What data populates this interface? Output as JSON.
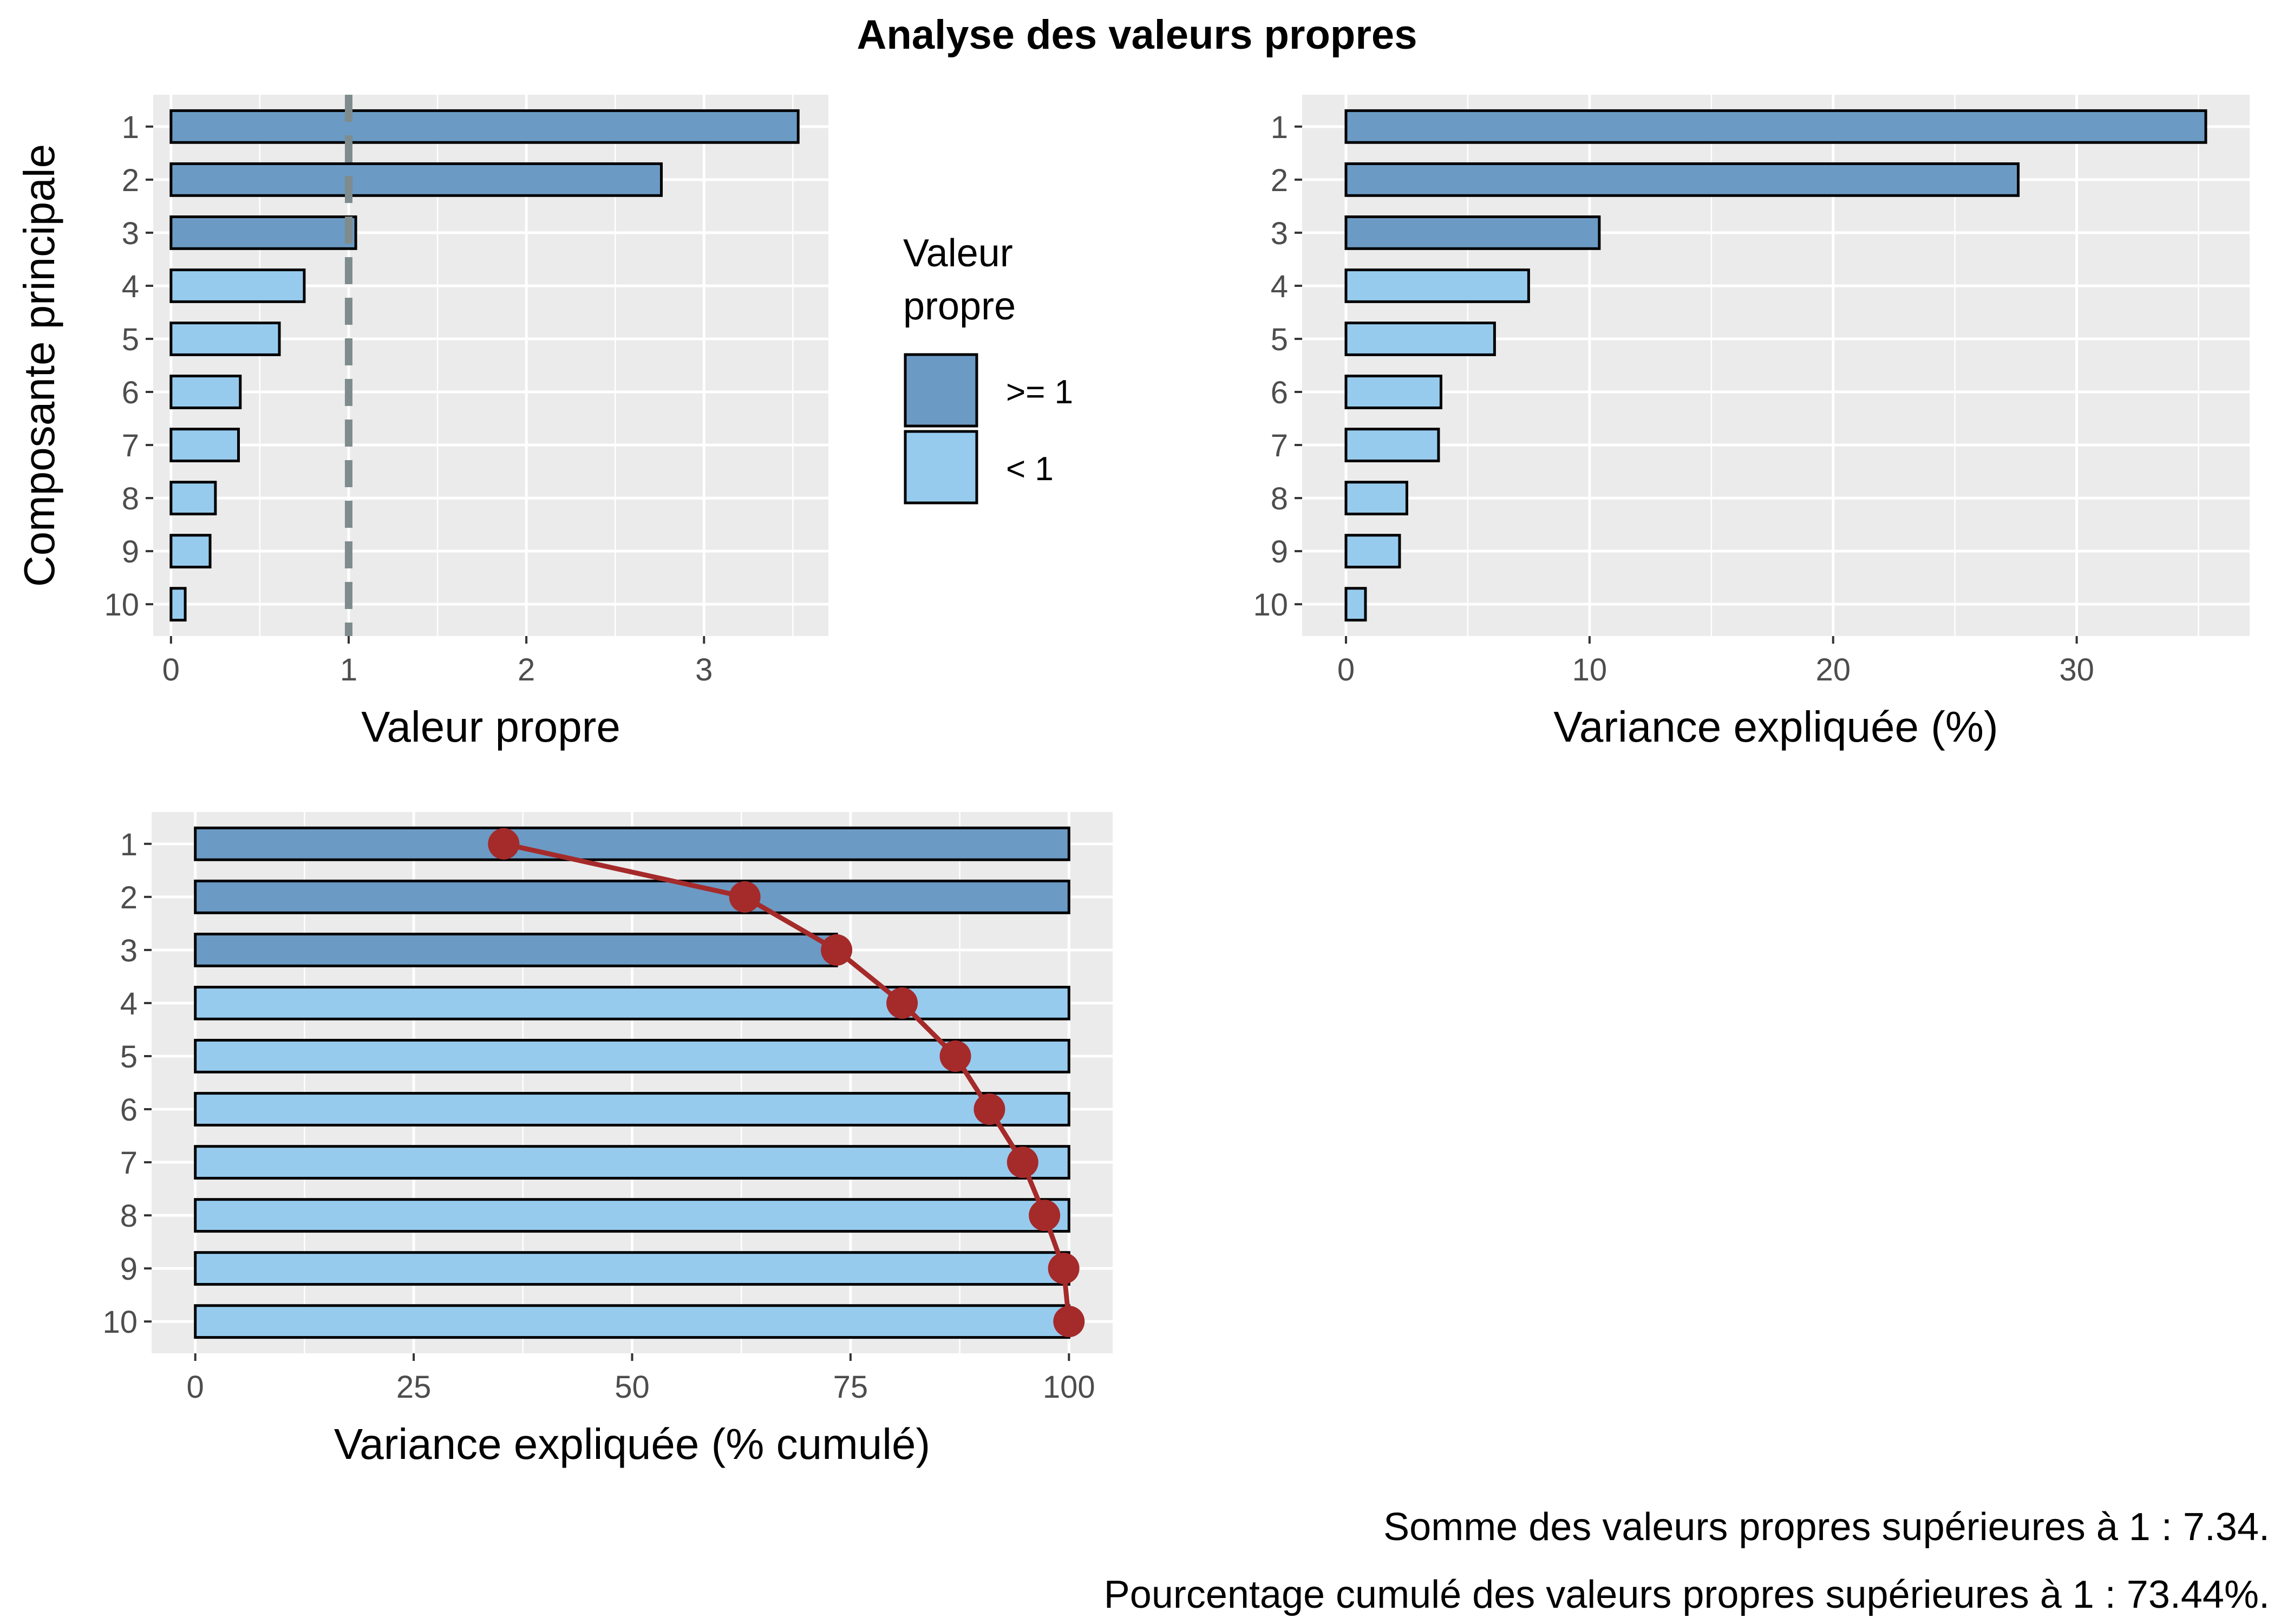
{
  "title": "Analyse des valeurs propres",
  "colors": {
    "high": "#6B9AC4",
    "low": "#96CBEE",
    "panel_bg": "#EBEBEB",
    "grid": "#FFFFFF",
    "tick_text": "#4D4D4D",
    "threshold_line": "#7F8C8D",
    "cumulative_line": "#A52A2A"
  },
  "legend": {
    "title_line1": "Valeur",
    "title_line2": "propre",
    "items": [
      {
        "label": ">= 1",
        "color_key": "high"
      },
      {
        "label": "< 1",
        "color_key": "low"
      }
    ]
  },
  "footer": {
    "line1": "Somme des valeurs propres supérieures à 1 : 7.34.",
    "line2": "Pourcentage cumulé des valeurs propres supérieures à 1 : 73.44%."
  },
  "chart_data": [
    {
      "type": "bar",
      "orientation": "horizontal",
      "categories": [
        "1",
        "2",
        "3",
        "4",
        "5",
        "6",
        "7",
        "8",
        "9",
        "10"
      ],
      "values": [
        3.53,
        2.76,
        1.04,
        0.75,
        0.61,
        0.39,
        0.38,
        0.25,
        0.22,
        0.08
      ],
      "group": [
        ">= 1",
        ">= 1",
        ">= 1",
        "< 1",
        "< 1",
        "< 1",
        "< 1",
        "< 1",
        "< 1",
        "< 1"
      ],
      "xlabel": "Valeur propre",
      "ylabel": "Composante principale",
      "xlim": [
        -0.1,
        3.7
      ],
      "xticks": [
        0,
        1,
        2,
        3
      ],
      "reference_line": 1,
      "grid": true
    },
    {
      "type": "bar",
      "orientation": "horizontal",
      "categories": [
        "1",
        "2",
        "3",
        "4",
        "5",
        "6",
        "7",
        "8",
        "9",
        "10"
      ],
      "values": [
        35.3,
        27.6,
        10.4,
        7.5,
        6.1,
        3.9,
        3.8,
        2.5,
        2.2,
        0.8
      ],
      "group": [
        ">= 1",
        ">= 1",
        ">= 1",
        "< 1",
        "< 1",
        "< 1",
        "< 1",
        "< 1",
        "< 1",
        "< 1"
      ],
      "xlabel": "Variance expliquée (%)",
      "ylabel": "",
      "xlim": [
        -1.8,
        37.1
      ],
      "xticks": [
        0,
        10,
        20,
        30
      ],
      "grid": true
    },
    {
      "type": "bar",
      "orientation": "horizontal",
      "categories": [
        "1",
        "2",
        "3",
        "4",
        "5",
        "6",
        "7",
        "8",
        "9",
        "10"
      ],
      "values": [
        100,
        100,
        73.4,
        100,
        100,
        100,
        100,
        100,
        100,
        100
      ],
      "group": [
        ">= 1",
        ">= 1",
        ">= 1",
        "< 1",
        "< 1",
        "< 1",
        "< 1",
        "< 1",
        "< 1",
        "< 1"
      ],
      "line_values": [
        35.3,
        62.9,
        73.4,
        80.9,
        87.0,
        90.9,
        94.7,
        97.2,
        99.4,
        100.0
      ],
      "xlabel": "Variance expliquée (% cumulé)",
      "ylabel": "",
      "xlim": [
        -5,
        105
      ],
      "xticks": [
        0,
        25,
        50,
        75,
        100
      ],
      "grid": true
    }
  ]
}
